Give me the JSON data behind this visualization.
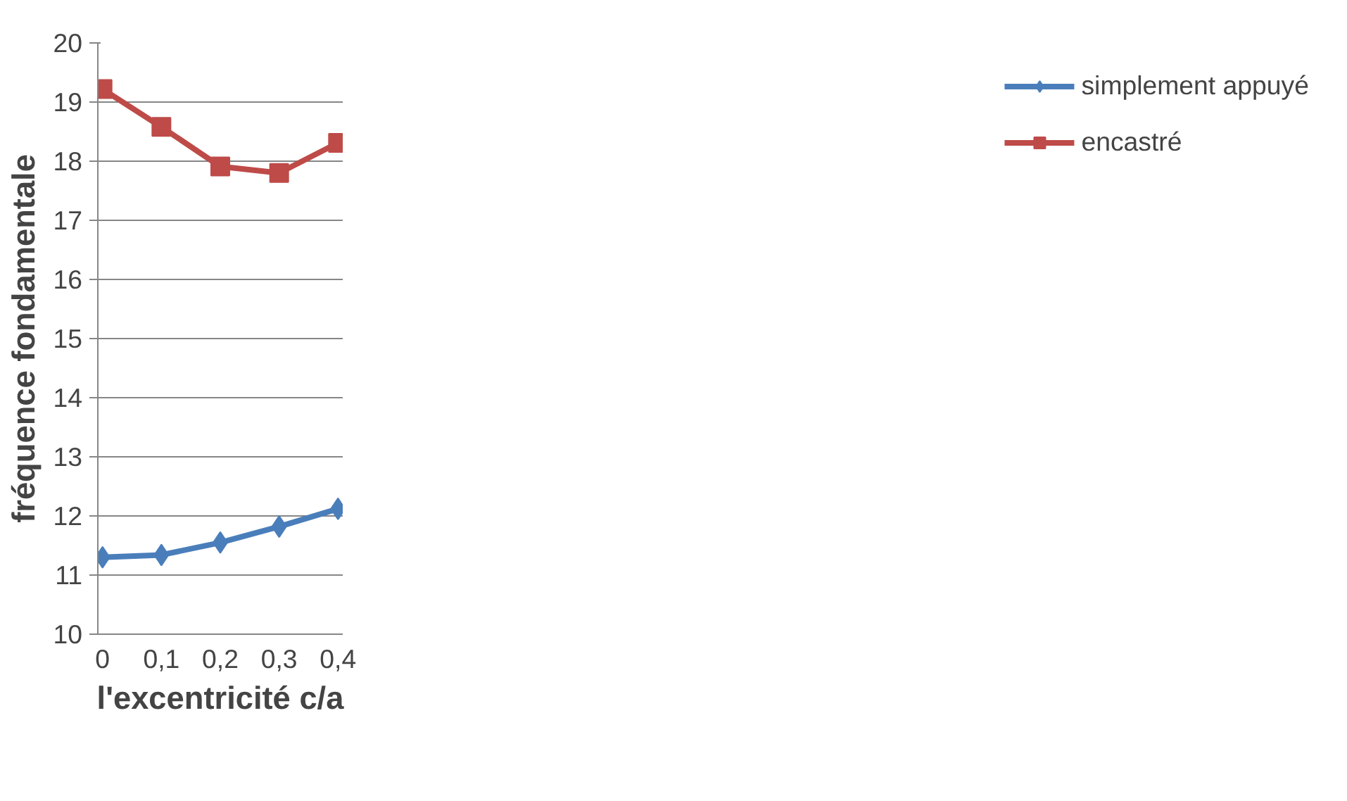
{
  "chart_data": {
    "type": "line",
    "xlabel": "l'excentricité c/a",
    "ylabel": "fréquence fondamentale",
    "categories": [
      "0",
      "0,1",
      "0,2",
      "0,3",
      "0,4"
    ],
    "series": [
      {
        "name": "simplement appuyé",
        "color": "#4a7ebb",
        "marker": "diamond",
        "values": [
          11.3,
          11.34,
          11.55,
          11.82,
          12.12
        ]
      },
      {
        "name": "encastré",
        "color": "#be4b48",
        "marker": "square",
        "values": [
          19.22,
          18.58,
          17.91,
          17.8,
          18.31
        ]
      }
    ],
    "ylim": [
      10,
      20
    ],
    "yticks": [
      10,
      11,
      12,
      13,
      14,
      15,
      16,
      17,
      18,
      19,
      20
    ],
    "grid": "y",
    "legend": "right",
    "line_style": "solid"
  }
}
